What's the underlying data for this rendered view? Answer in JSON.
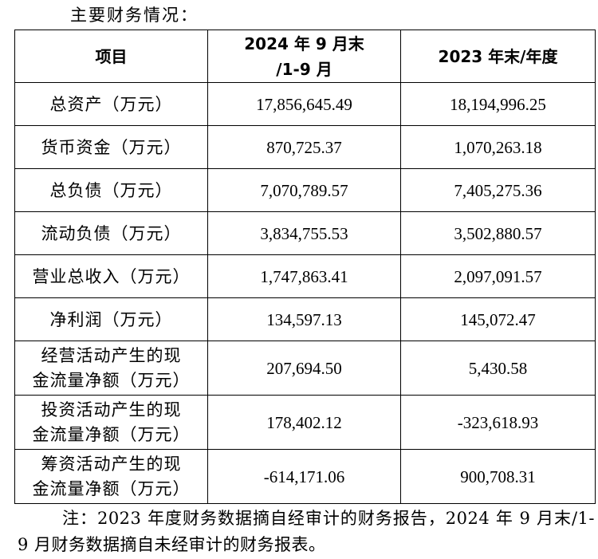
{
  "heading": "主要财务情况：",
  "table": {
    "headers": {
      "item": "项目",
      "period_2024_line1": "2024 年 9 月末",
      "period_2024_line2": "/1-9 月",
      "period_2023": "2023 年末/年度"
    },
    "rows": [
      {
        "label": "总资产（万元）",
        "v2024": "17,856,645.49",
        "v2023": "18,194,996.25"
      },
      {
        "label": "货币资金（万元）",
        "v2024": "870,725.37",
        "v2023": "1,070,263.18"
      },
      {
        "label": "总负债（万元）",
        "v2024": "7,070,789.57",
        "v2023": "7,405,275.36"
      },
      {
        "label": "流动负债（万元）",
        "v2024": "3,834,755.53",
        "v2023": "3,502,880.57"
      },
      {
        "label": "营业总收入（万元）",
        "v2024": "1,747,863.41",
        "v2023": "2,097,091.57"
      },
      {
        "label": "净利润（万元）",
        "v2024": "134,597.13",
        "v2023": "145,072.47"
      },
      {
        "label_line1": "经营活动产生的现",
        "label_line2": "金流量净额（万元）",
        "v2024": "207,694.50",
        "v2023": "5,430.58"
      },
      {
        "label_line1": "投资活动产生的现",
        "label_line2": "金流量净额（万元）",
        "v2024": "178,402.12",
        "v2023": "-323,618.93"
      },
      {
        "label_line1": "筹资活动产生的现",
        "label_line2": "金流量净额（万元）",
        "v2024": "-614,171.06",
        "v2023": "900,708.31"
      }
    ]
  },
  "note": "注：2023 年度财务数据摘自经审计的财务报告，2024 年 9 月末/1-9 月财务数据摘自未经审计的财务报表。"
}
